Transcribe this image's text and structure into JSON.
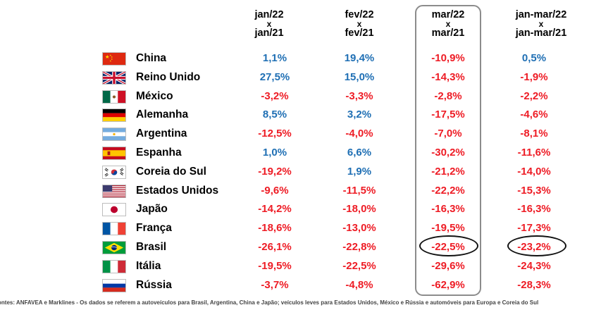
{
  "chart_data": {
    "type": "table",
    "columns": [
      {
        "top": "jan/22",
        "mid": "x",
        "bot": "jan/21"
      },
      {
        "top": "fev/22",
        "mid": "x",
        "bot": "fev/21"
      },
      {
        "top": "mar/22",
        "mid": "x",
        "bot": "mar/21"
      },
      {
        "top": "jan-mar/22",
        "mid": "x",
        "bot": "jan-mar/21"
      }
    ],
    "rows": [
      {
        "country": "China",
        "flag": "flag-china",
        "values": [
          "1,1%",
          "19,4%",
          "-10,9%",
          "0,5%"
        ]
      },
      {
        "country": "Reino Unido",
        "flag": "flag-united-kingdom",
        "values": [
          "27,5%",
          "15,0%",
          "-14,3%",
          "-1,9%"
        ]
      },
      {
        "country": "México",
        "flag": "flag-mexico",
        "values": [
          "-3,2%",
          "-3,3%",
          "-2,8%",
          "-2,2%"
        ]
      },
      {
        "country": "Alemanha",
        "flag": "flag-germany",
        "values": [
          "8,5%",
          "3,2%",
          "-17,5%",
          "-4,6%"
        ]
      },
      {
        "country": "Argentina",
        "flag": "flag-argentina",
        "values": [
          "-12,5%",
          "-4,0%",
          "-7,0%",
          "-8,1%"
        ]
      },
      {
        "country": "Espanha",
        "flag": "flag-spain",
        "values": [
          "1,0%",
          "6,6%",
          "-30,2%",
          "-11,6%"
        ]
      },
      {
        "country": "Coreia do Sul",
        "flag": "flag-south-korea",
        "values": [
          "-19,2%",
          "1,9%",
          "-21,2%",
          "-14,0%"
        ]
      },
      {
        "country": "Estados Unidos",
        "flag": "flag-united-states",
        "values": [
          "-9,6%",
          "-11,5%",
          "-22,2%",
          "-15,3%"
        ]
      },
      {
        "country": "Japão",
        "flag": "flag-japan",
        "values": [
          "-14,2%",
          "-18,0%",
          "-16,3%",
          "-16,3%"
        ]
      },
      {
        "country": "França",
        "flag": "flag-france",
        "values": [
          "-18,6%",
          "-13,0%",
          "-19,5%",
          "-17,3%"
        ]
      },
      {
        "country": "Brasil",
        "flag": "flag-brazil",
        "values": [
          "-26,1%",
          "-22,8%",
          "-22,5%",
          "-23,2%"
        ],
        "circled": [
          2,
          3
        ]
      },
      {
        "country": "Itália",
        "flag": "flag-italy",
        "values": [
          "-19,5%",
          "-22,5%",
          "-29,6%",
          "-24,3%"
        ]
      },
      {
        "country": "Rússia",
        "flag": "flag-russia",
        "values": [
          "-3,7%",
          "-4,8%",
          "-62,9%",
          "-28,3%"
        ]
      }
    ],
    "highlighted_column": 2,
    "colors": {
      "positive": "#1f6fb4",
      "negative": "#ee1c25",
      "text": "#000000"
    }
  },
  "footer": "ontes: ANFAVEA e Marklines  -  Os dados se referem a autoveículos  para Brasil,  Argentina, China e Japão;  veículos leves para Estados Unidos,  México e Rússia e automóveis para Europa e Coreia do Sul"
}
